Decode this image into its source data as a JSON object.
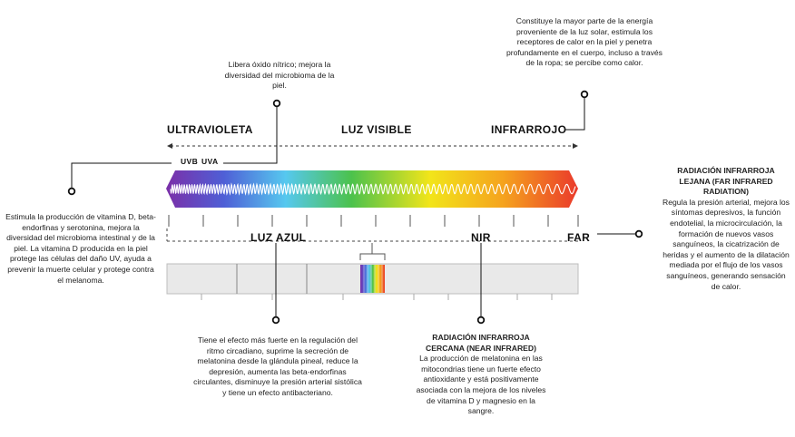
{
  "bands": {
    "uv": "ULTRAVIOLETA",
    "visible": "LUZ VISIBLE",
    "ir": "INFRARROJO",
    "uvb": "UVB",
    "uva": "UVA"
  },
  "sublabels": {
    "blue": "LUZ AZUL",
    "nir": "NIR",
    "far": "FAR"
  },
  "notes": {
    "uva": "Libera óxido nítrico; mejora la diversidad del microbioma de la piel.",
    "ir": "Constituye la mayor parte de la energía proveniente de la luz solar, estimula los receptores de calor en la piel y penetra profundamente en el cuerpo, incluso a través de la ropa; se percibe como calor.",
    "uvb": "Estimula la producción de vitamina D, beta-endorfinas y serotonina, mejora la diversidad del microbioma intestinal y de la piel. La vitamina D producida en la piel protege las células del daño UV, ayuda a prevenir la muerte celular y protege contra el melanoma.",
    "far_title": "RADIACIÓN INFRARROJA LEJANA (FAR INFRARED RADIATION)",
    "far_body": "Regula la presión arterial, mejora los síntomas depresivos, la función endotelial, la microcirculación, la formación de nuevos vasos sanguíneos, la cicatrización de heridas y el aumento de la dilatación mediada por el flujo de los vasos sanguíneos, generando sensación de calor.",
    "blue": "Tiene el efecto más fuerte en la regulación del ritmo circadiano, suprime la secreción de melatonina desde la glándula pineal, reduce la depresión, aumenta las beta-endorfinas circulantes, disminuye la presión arterial sistólica y tiene un efecto antibacteriano.",
    "nir_title": "RADIACIÓN INFRARROJA CERCANA (NEAR INFRARED)",
    "nir_body": "La producción de melatonina en las mitocondrias tiene un fuerte efecto antioxidante y está positivamente asociada con la mejora de los niveles de vitamina D y magnesio en la sangre."
  },
  "colors": {
    "spectrum": [
      "#7b2fa8",
      "#4f5fd6",
      "#56c8ef",
      "#4cc24c",
      "#f2e51a",
      "#f5a21e",
      "#ea3a2b"
    ],
    "ink": "#222222",
    "bar": "#e9e9e9"
  }
}
